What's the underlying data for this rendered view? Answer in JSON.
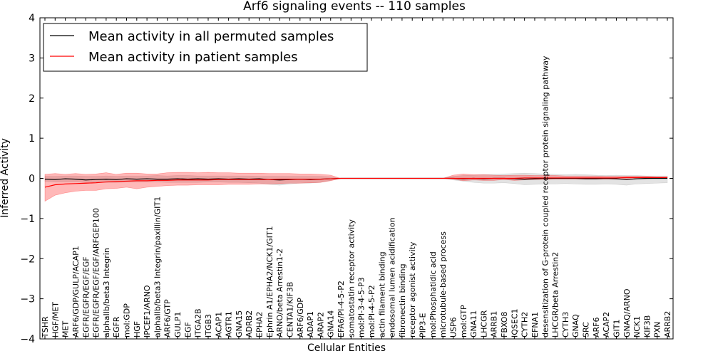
{
  "chart_data": {
    "type": "line",
    "title": "Arf6 signaling events -- 110 samples",
    "xlabel": "Cellular Entities",
    "ylabel": "Inferred Activity",
    "ylim": [
      -4,
      4
    ],
    "yticks": [
      -4,
      -3,
      -2,
      -1,
      0,
      1,
      2,
      3,
      4
    ],
    "ytick_labels": [
      "−4",
      "−3",
      "−2",
      "−1",
      "0",
      "1",
      "2",
      "3",
      "4"
    ],
    "legend": {
      "placement": "top-left",
      "entries": [
        {
          "label": "Mean activity in all permuted samples",
          "color": "#000000"
        },
        {
          "label": "Mean activity in patient samples",
          "color": "#ff0000"
        }
      ]
    },
    "categories": [
      "TSHR",
      "HGF/MET",
      "MET",
      "ARF6/GDP/GULP/ACAP1",
      "EGFR/EGFR/EGF/EGF",
      "EGFR/EGFR/EGF/EGF/ARFGEP100",
      "alphaIIb/beta3 Integrin",
      "EGFR",
      "mol:GDP",
      "HGF",
      "IPCEF1/ARNO",
      "alphaIIb/beta3 Integrin/paxillin/GIT1",
      "ARF6/GTP",
      "GULP1",
      "EGF",
      "ITGA2B",
      "ITGB3",
      "ACAP1",
      "AGTR1",
      "GNA15",
      "ADRB2",
      "EPHA2",
      "Ephrin A1/EPHA2/NCK1/GIT1",
      "ARNO/beta Arrestin1-2",
      "CENTA1/KIF3B",
      "ARF6/GDP",
      "ADAP1",
      "ARAP2",
      "GNA14",
      "EFA6/PI-4-5-P2",
      "somatostatin receptor activity",
      "mol:PI-3-4-5-P3",
      "mol:PI-4-5-P2",
      "actin filament binding",
      "endosomal lumen acidification",
      "fibronectin binding",
      "receptor agonist activity",
      "PIP3-E",
      "mol:Phosphatidic acid",
      "microtubule-based process",
      "USP6",
      "mol:GTP",
      "GNA11",
      "LHCGR",
      "ARRB1",
      "FBXO8",
      "IQSEC1",
      "CYTH2",
      "EFNA1",
      "desensitization of G-protein coupled receptor protein signaling pathway",
      "LHCGR/beta Arrestin2",
      "CYTH3",
      "GNAQ",
      "SRC",
      "ARF6",
      "ACAP2",
      "GIT1",
      "GNAQ/ARNO",
      "NCK1",
      "KIF3B",
      "PXN",
      "ARRB2"
    ],
    "series": [
      {
        "name": "Mean activity in patient samples",
        "color": "#ff0000",
        "values": [
          -0.22,
          -0.16,
          -0.14,
          -0.13,
          -0.12,
          -0.11,
          -0.09,
          -0.08,
          -0.07,
          -0.06,
          -0.06,
          -0.05,
          -0.05,
          -0.04,
          -0.04,
          -0.04,
          -0.04,
          -0.03,
          -0.03,
          -0.03,
          -0.03,
          -0.03,
          -0.03,
          -0.02,
          -0.02,
          -0.02,
          -0.02,
          -0.02,
          -0.01,
          0.0,
          0.0,
          0.0,
          0.0,
          0.0,
          0.0,
          0.0,
          0.0,
          0.0,
          0.0,
          0.0,
          0.0,
          0.0,
          0.0,
          0.0,
          0.0,
          0.0,
          0.0,
          0.01,
          0.01,
          0.01,
          0.01,
          0.01,
          0.01,
          0.01,
          0.01,
          0.01,
          0.01,
          0.02,
          0.02,
          0.02,
          0.02,
          0.02
        ],
        "band_lower": [
          -0.57,
          -0.42,
          -0.36,
          -0.32,
          -0.3,
          -0.3,
          -0.26,
          -0.25,
          -0.22,
          -0.26,
          -0.22,
          -0.2,
          -0.18,
          -0.17,
          -0.17,
          -0.16,
          -0.16,
          -0.16,
          -0.15,
          -0.15,
          -0.15,
          -0.14,
          -0.14,
          -0.13,
          -0.12,
          -0.12,
          -0.11,
          -0.1,
          -0.06,
          0.0,
          0.0,
          0.0,
          0.0,
          0.0,
          0.0,
          0.0,
          0.0,
          0.0,
          0.0,
          0.0,
          -0.02,
          -0.06,
          -0.04,
          -0.05,
          -0.05,
          -0.03,
          -0.05,
          -0.04,
          -0.03,
          -0.03,
          -0.02,
          -0.02,
          -0.02,
          -0.02,
          -0.02,
          -0.02,
          -0.02,
          -0.02,
          -0.01,
          -0.01,
          0.0,
          0.0
        ],
        "band_upper": [
          0.1,
          0.12,
          0.1,
          0.12,
          0.1,
          0.11,
          0.14,
          0.1,
          0.13,
          0.13,
          0.11,
          0.11,
          0.14,
          0.15,
          0.15,
          0.14,
          0.15,
          0.14,
          0.14,
          0.13,
          0.13,
          0.13,
          0.12,
          0.12,
          0.12,
          0.11,
          0.11,
          0.1,
          0.08,
          0.0,
          0.0,
          0.0,
          0.0,
          0.0,
          0.0,
          0.0,
          0.0,
          0.0,
          0.0,
          0.0,
          0.08,
          0.11,
          0.09,
          0.09,
          0.08,
          0.07,
          0.08,
          0.08,
          0.07,
          0.07,
          0.07,
          0.06,
          0.06,
          0.06,
          0.06,
          0.05,
          0.05,
          0.05,
          0.05,
          0.05,
          0.04,
          0.04
        ]
      },
      {
        "name": "Mean activity in all permuted samples",
        "color": "#000000",
        "values": [
          -0.02,
          -0.03,
          -0.01,
          -0.02,
          -0.04,
          -0.03,
          -0.02,
          -0.03,
          -0.01,
          -0.02,
          -0.01,
          -0.02,
          -0.02,
          -0.01,
          -0.02,
          -0.01,
          -0.02,
          -0.01,
          -0.02,
          -0.01,
          -0.02,
          -0.01,
          -0.03,
          -0.04,
          -0.03,
          -0.02,
          -0.03,
          -0.02,
          -0.01,
          0.0,
          0.0,
          0.0,
          0.0,
          0.0,
          0.0,
          0.0,
          0.0,
          0.0,
          0.0,
          0.0,
          0.0,
          -0.01,
          0.0,
          -0.01,
          0.0,
          0.0,
          -0.01,
          -0.02,
          -0.01,
          0.0,
          0.0,
          0.0,
          0.0,
          -0.01,
          -0.01,
          0.0,
          -0.01,
          -0.03,
          -0.01,
          0.0,
          0.0,
          0.0
        ],
        "band_lower": [
          -0.08,
          -0.09,
          -0.09,
          -0.09,
          -0.1,
          -0.09,
          -0.1,
          -0.1,
          -0.09,
          -0.09,
          -0.09,
          -0.09,
          -0.1,
          -0.1,
          -0.1,
          -0.1,
          -0.09,
          -0.09,
          -0.1,
          -0.1,
          -0.11,
          -0.12,
          -0.15,
          -0.17,
          -0.14,
          -0.12,
          -0.12,
          -0.1,
          -0.05,
          0.0,
          0.0,
          0.0,
          0.0,
          0.0,
          0.0,
          0.0,
          0.0,
          0.0,
          0.0,
          0.0,
          -0.04,
          -0.07,
          -0.1,
          -0.12,
          -0.12,
          -0.11,
          -0.13,
          -0.16,
          -0.15,
          -0.14,
          -0.14,
          -0.13,
          -0.14,
          -0.15,
          -0.15,
          -0.14,
          -0.15,
          -0.17,
          -0.14,
          -0.13,
          -0.12,
          -0.11
        ],
        "band_upper": [
          0.05,
          0.05,
          0.06,
          0.06,
          0.05,
          0.05,
          0.06,
          0.05,
          0.06,
          0.06,
          0.06,
          0.07,
          0.06,
          0.07,
          0.07,
          0.06,
          0.06,
          0.06,
          0.06,
          0.06,
          0.06,
          0.05,
          0.05,
          0.05,
          0.05,
          0.05,
          0.05,
          0.05,
          0.04,
          0.0,
          0.0,
          0.0,
          0.0,
          0.0,
          0.0,
          0.0,
          0.0,
          0.0,
          0.0,
          0.0,
          0.05,
          0.07,
          0.08,
          0.09,
          0.1,
          0.11,
          0.12,
          0.13,
          0.12,
          0.11,
          0.1,
          0.09,
          0.1,
          0.09,
          0.08,
          0.07,
          0.08,
          0.07,
          0.07,
          0.06,
          0.06,
          0.06
        ]
      }
    ]
  }
}
